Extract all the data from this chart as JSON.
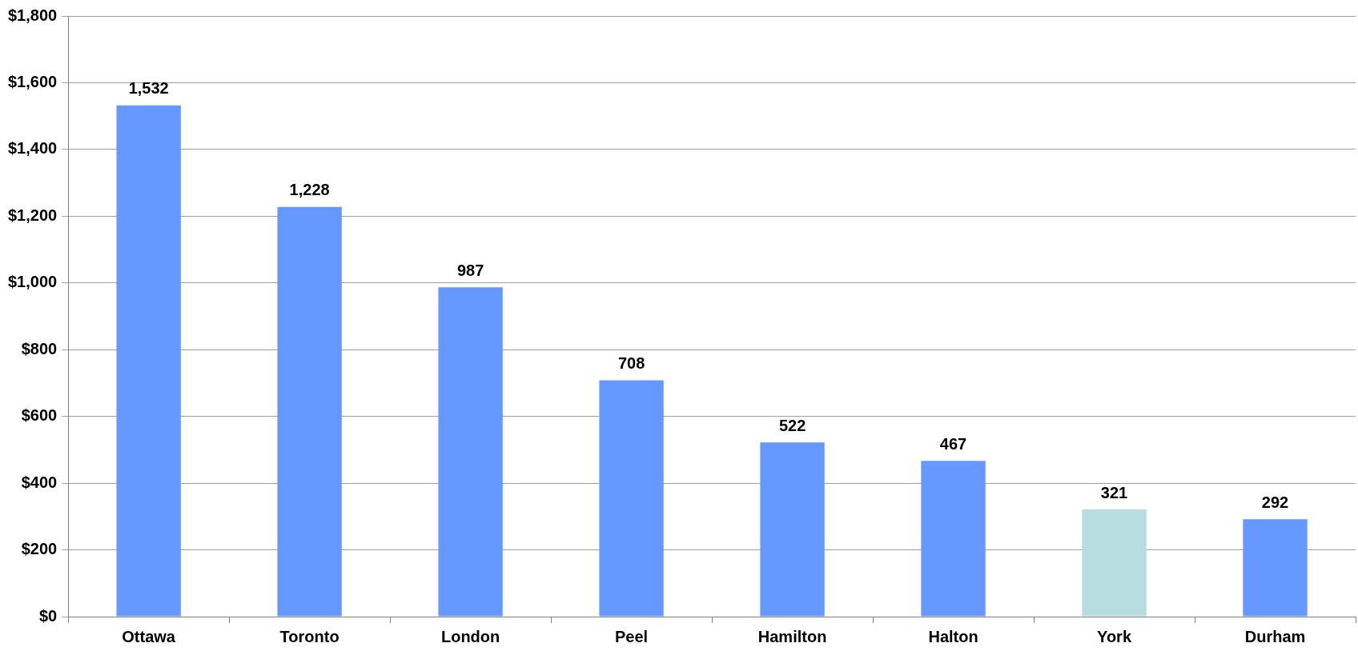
{
  "chart_data": {
    "type": "bar",
    "categories": [
      "Ottawa",
      "Toronto",
      "London",
      "Peel",
      "Hamilton",
      "Halton",
      "York",
      "Durham"
    ],
    "values": [
      1532,
      1228,
      987,
      708,
      522,
      467,
      321,
      292
    ],
    "colors": [
      "#6699ff",
      "#6699ff",
      "#6699ff",
      "#6699ff",
      "#6699ff",
      "#6699ff",
      "#b8dde1",
      "#6699ff"
    ],
    "ylim": [
      0,
      1800
    ],
    "yticks": [
      {
        "value": 0,
        "label": "$0"
      },
      {
        "value": 200,
        "label": "$200"
      },
      {
        "value": 400,
        "label": "$400"
      },
      {
        "value": 600,
        "label": "$600"
      },
      {
        "value": 800,
        "label": "$800"
      },
      {
        "value": 1000,
        "label": "$1,000"
      },
      {
        "value": 1200,
        "label": "$1,200"
      },
      {
        "value": 1400,
        "label": "$1,400"
      },
      {
        "value": 1600,
        "label": "$1,600"
      },
      {
        "value": 1800,
        "label": "$1,800"
      }
    ],
    "value_labels": [
      "1,532",
      "1,228",
      "987",
      "708",
      "522",
      "467",
      "321",
      "292"
    ],
    "grid": "y",
    "legend": false
  }
}
